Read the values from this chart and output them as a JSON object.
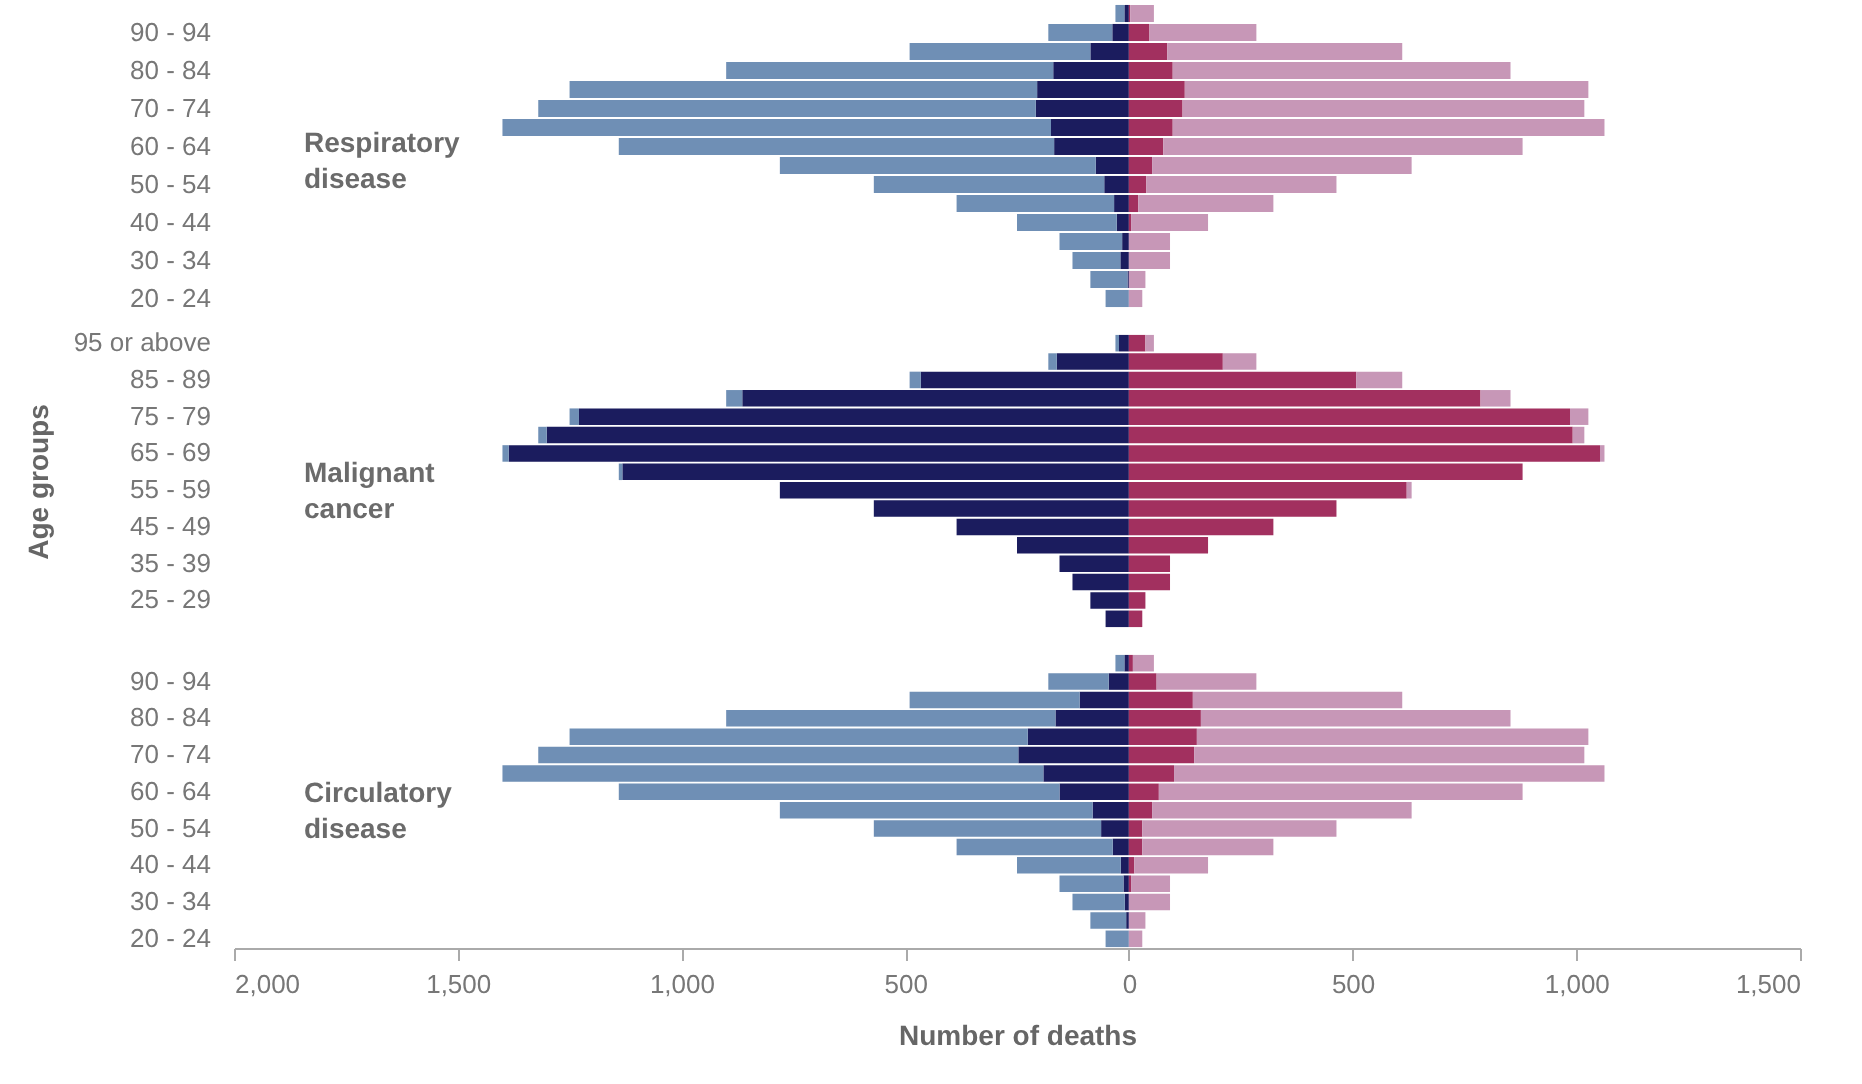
{
  "chart_data": [
    {
      "type": "bar",
      "orientation": "horizontal",
      "stacked": true,
      "tick_labels": "y",
      "categories": [
        null,
        "90 - 94",
        null,
        "80 - 84",
        null,
        "70 - 74",
        null,
        "60 - 64",
        null,
        "50 - 54",
        null,
        "40 - 44",
        null,
        "30 - 34",
        null,
        "20 - 24"
      ],
      "xlim": [
        -2000,
        1500
      ],
      "annotations": [
        "Respiratory disease"
      ],
      "series": [
        {
          "color": "#1b1c5e",
          "values": [
            -10,
            -37,
            -86,
            -169,
            -205,
            -208,
            -174,
            -167,
            -74,
            -55,
            -33,
            -27,
            -15,
            -19,
            -3,
            null
          ]
        },
        {
          "color": "#6f8fb5",
          "values": [
            -20,
            -143,
            -404,
            -731,
            -1045,
            -1112,
            -1226,
            -973,
            -706,
            -515,
            -352,
            -223,
            -140,
            -107,
            -83,
            -52
          ]
        },
        {
          "color": "#a2305f",
          "values": [
            3,
            46,
            86,
            98,
            125,
            120,
            98,
            77,
            52,
            39,
            21,
            5,
            null,
            null,
            null,
            null
          ]
        },
        {
          "color": "#c797b7",
          "values": [
            53,
            239,
            525,
            755,
            902,
            898,
            965,
            803,
            580,
            425,
            302,
            172,
            92,
            92,
            37,
            30
          ]
        }
      ]
    },
    {
      "type": "bar",
      "orientation": "horizontal",
      "stacked": true,
      "tick_labels": "y",
      "ylabel": "Age groups",
      "categories": [
        "95 or above",
        null,
        "85 - 89",
        null,
        "75 - 79",
        null,
        "65 - 69",
        null,
        "55 - 59",
        null,
        "45 - 49",
        null,
        "35 - 39",
        null,
        "25 - 29",
        null
      ],
      "xlim": [
        -2000,
        1500
      ],
      "annotations": [
        "Malignant cancer"
      ],
      "series": [
        {
          "color": "#1b1c5e",
          "values": [
            -22,
            -161,
            -465,
            -864,
            -1229,
            -1301,
            -1386,
            -1132,
            -780,
            -570,
            -385,
            -250,
            -155,
            -126,
            -86,
            -52
          ]
        },
        {
          "color": "#6f8fb5",
          "values": [
            -8,
            -19,
            -25,
            -36,
            -21,
            -19,
            -14,
            -8,
            null,
            null,
            null,
            null,
            null,
            null,
            null,
            null
          ]
        },
        {
          "color": "#a2305f",
          "values": [
            37,
            210,
            508,
            786,
            986,
            992,
            1053,
            880,
            621,
            464,
            323,
            177,
            92,
            92,
            37,
            30
          ]
        },
        {
          "color": "#c797b7",
          "values": [
            19,
            75,
            103,
            67,
            41,
            26,
            10,
            null,
            11,
            null,
            null,
            null,
            null,
            null,
            null,
            null
          ]
        }
      ]
    },
    {
      "type": "bar",
      "orientation": "horizontal",
      "stacked": true,
      "xlabel": "Number of deaths",
      "categories": [
        null,
        "90 - 94",
        null,
        "80 - 84",
        null,
        "70 - 74",
        null,
        "60 - 64",
        null,
        "50 - 54",
        null,
        "40 - 44",
        null,
        "30 - 34",
        null,
        "20 - 24"
      ],
      "xlim": [
        -2000,
        1500
      ],
      "xticks": [
        {
          "value": -2000,
          "label": "2,000"
        },
        {
          "value": -1500,
          "label": "1,500"
        },
        {
          "value": -1000,
          "label": "1,000"
        },
        {
          "value": -500,
          "label": "500"
        },
        0,
        500,
        {
          "value": 1000,
          "label": "1,000"
        },
        {
          "value": 1500,
          "label": "1,500"
        }
      ],
      "annotations": [
        "Circulatory disease"
      ],
      "series": [
        {
          "color": "#1b1c5e",
          "values": [
            -10,
            -45,
            -110,
            -164,
            -226,
            -247,
            -191,
            -155,
            -81,
            -62,
            -36,
            -18,
            -12,
            -9,
            -6,
            null
          ]
        },
        {
          "color": "#6f8fb5",
          "values": [
            -20,
            -135,
            -380,
            -736,
            -1024,
            -1073,
            -1209,
            -985,
            -699,
            -508,
            -349,
            -232,
            -143,
            -117,
            -80,
            -52
          ]
        },
        {
          "color": "#a2305f",
          "values": [
            9,
            62,
            143,
            161,
            152,
            146,
            101,
            67,
            52,
            30,
            30,
            12,
            5,
            null,
            null,
            null
          ]
        },
        {
          "color": "#c797b7",
          "values": [
            47,
            223,
            468,
            692,
            875,
            872,
            962,
            813,
            580,
            434,
            293,
            165,
            87,
            92,
            37,
            30
          ]
        }
      ]
    }
  ]
}
